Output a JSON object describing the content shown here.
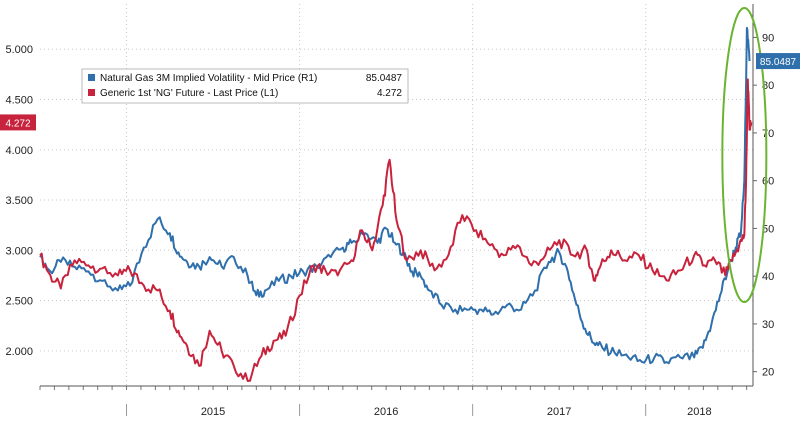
{
  "chart_data": {
    "type": "line",
    "title": "",
    "xlabel": "",
    "ylabel_left": "",
    "ylabel_right": "",
    "x_years": [
      "2015",
      "2016",
      "2017",
      "2018"
    ],
    "x_start": 2014.5,
    "x_end": 2018.62,
    "ylim_left": [
      1.65,
      5.45
    ],
    "ylim_right": [
      17,
      97
    ],
    "left_ticks": [
      2.0,
      2.5,
      3.0,
      3.5,
      4.0,
      4.5,
      5.0
    ],
    "left_tick_labels": [
      "2.000",
      "2.500",
      "3.000",
      "3.500",
      "4.000",
      "4.500",
      "5.000"
    ],
    "right_ticks": [
      20,
      30,
      40,
      50,
      60,
      70,
      80,
      90
    ],
    "right_tick_labels": [
      "20",
      "30",
      "40",
      "50",
      "60",
      "70",
      "80",
      "90"
    ],
    "grid": true,
    "legend_position": "top-left",
    "series": [
      {
        "name": "Natural Gas 3M Implied Volatility - Mid Price (R1)",
        "last_value_label": "85.0487",
        "axis": "right",
        "color": "#2f6fab",
        "x": [
          2014.5,
          2014.56,
          2014.62,
          2014.7,
          2014.78,
          2014.86,
          2014.95,
          2015.02,
          2015.1,
          2015.18,
          2015.25,
          2015.3,
          2015.35,
          2015.42,
          2015.48,
          2015.55,
          2015.62,
          2015.7,
          2015.75,
          2015.8,
          2015.88,
          2015.95,
          2016.02,
          2016.1,
          2016.18,
          2016.25,
          2016.3,
          2016.38,
          2016.45,
          2016.5,
          2016.55,
          2016.6,
          2016.65,
          2016.7,
          2016.75,
          2016.82,
          2016.9,
          2016.98,
          2017.05,
          2017.12,
          2017.2,
          2017.28,
          2017.36,
          2017.44,
          2017.5,
          2017.55,
          2017.6,
          2017.65,
          2017.7,
          2017.75,
          2017.82,
          2017.9,
          2017.98,
          2018.05,
          2018.12,
          2018.2,
          2018.28,
          2018.33,
          2018.38,
          2018.43,
          2018.48,
          2018.52,
          2018.55,
          2018.57,
          2018.585,
          2018.6
        ],
        "y": [
          44,
          41,
          43,
          42,
          41,
          39,
          37,
          38,
          46,
          52,
          49,
          45,
          43,
          42,
          44,
          42,
          44,
          40,
          36,
          37,
          39,
          40,
          41,
          42,
          44,
          46,
          47,
          49,
          47,
          50,
          47,
          45,
          41,
          40,
          37,
          34,
          33,
          33,
          33,
          32,
          34,
          33,
          37,
          43,
          45,
          41,
          34,
          29,
          26,
          25,
          24,
          23,
          22,
          23,
          22,
          23,
          23,
          25,
          30,
          36,
          42,
          46,
          49,
          60,
          92,
          85.0487
        ]
      },
      {
        "name": "Generic 1st 'NG' Future - Last Price (L1)",
        "last_value_label": "4.272",
        "axis": "left",
        "color": "#c8233c",
        "x": [
          2014.5,
          2014.56,
          2014.62,
          2014.7,
          2014.78,
          2014.86,
          2014.95,
          2015.02,
          2015.1,
          2015.18,
          2015.25,
          2015.3,
          2015.35,
          2015.42,
          2015.48,
          2015.55,
          2015.62,
          2015.7,
          2015.78,
          2015.85,
          2015.92,
          2016.0,
          2016.08,
          2016.15,
          2016.22,
          2016.3,
          2016.36,
          2016.42,
          2016.48,
          2016.52,
          2016.56,
          2016.62,
          2016.7,
          2016.78,
          2016.86,
          2016.94,
          2017.02,
          2017.1,
          2017.18,
          2017.26,
          2017.34,
          2017.42,
          2017.5,
          2017.58,
          2017.66,
          2017.7,
          2017.74,
          2017.8,
          2017.88,
          2017.96,
          2018.04,
          2018.12,
          2018.2,
          2018.28,
          2018.34,
          2018.4,
          2018.46,
          2018.5,
          2018.54,
          2018.57,
          2018.58,
          2018.59,
          2018.6,
          2018.61
        ],
        "y": [
          2.95,
          2.75,
          2.62,
          2.9,
          2.85,
          2.82,
          2.75,
          2.8,
          2.65,
          2.6,
          2.4,
          2.2,
          2.05,
          1.85,
          2.2,
          2.0,
          1.85,
          1.7,
          1.95,
          2.1,
          2.15,
          2.55,
          2.85,
          2.8,
          2.75,
          2.9,
          3.2,
          3.0,
          3.45,
          3.9,
          3.3,
          2.9,
          3.0,
          2.8,
          2.95,
          3.35,
          3.2,
          3.05,
          2.95,
          3.05,
          2.85,
          2.95,
          3.1,
          2.95,
          3.0,
          2.7,
          2.85,
          3.0,
          2.9,
          2.95,
          2.8,
          2.7,
          2.8,
          2.95,
          2.85,
          2.9,
          2.75,
          2.9,
          3.05,
          3.15,
          3.7,
          4.7,
          4.2,
          4.272
        ]
      }
    ],
    "annotations": [
      {
        "type": "ellipse",
        "color": "#6ab432",
        "description_x": 2018.57
      }
    ]
  }
}
